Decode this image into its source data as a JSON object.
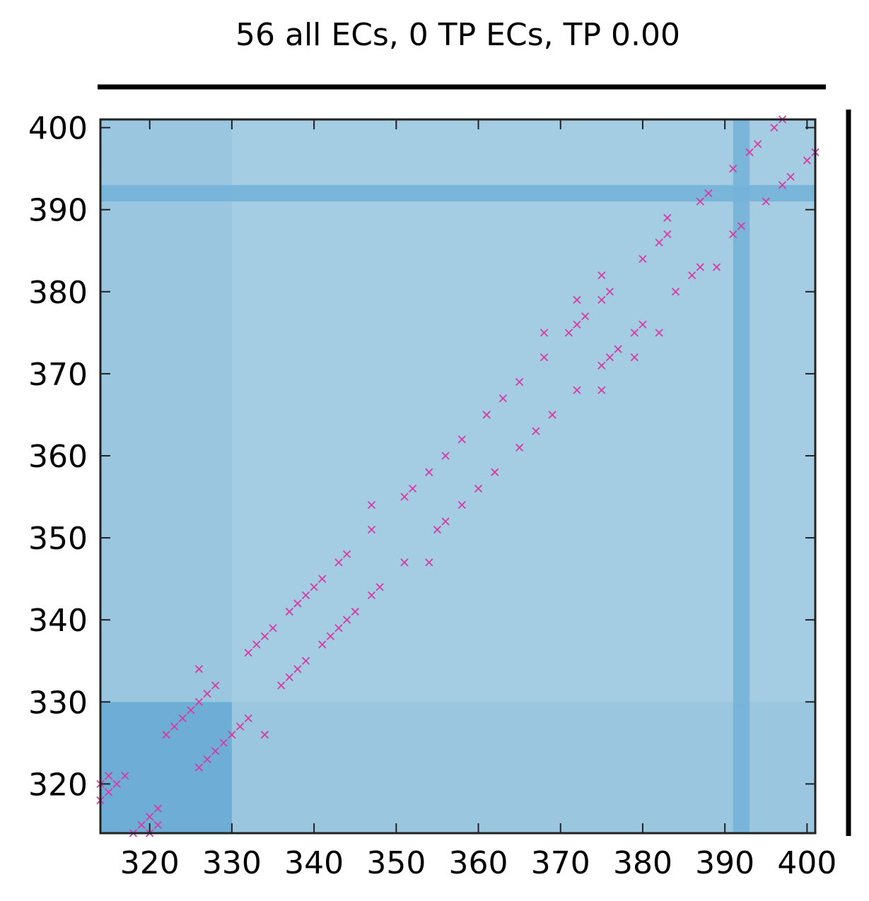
{
  "chart_data": {
    "type": "scatter",
    "title": "56 all ECs, 0 TP ECs, TP 0.00",
    "xlabel": "",
    "ylabel": "",
    "xlim": [
      314,
      401
    ],
    "ylim": [
      314,
      401
    ],
    "xticks": [
      320,
      330,
      340,
      350,
      360,
      370,
      380,
      390,
      400
    ],
    "yticks": [
      320,
      330,
      340,
      350,
      360,
      370,
      380,
      390,
      400
    ],
    "grid": false,
    "marker": "x",
    "colors": {
      "background": "#a4cce2",
      "block_dark": "#6eaed6",
      "block_mid": "#9ac6df",
      "band": "#75b2d9",
      "marker": "#d63ca4",
      "axis": "#222222"
    },
    "background_regions": [
      {
        "name": "segment-block",
        "x": [
          314,
          330
        ],
        "y": [
          314,
          330
        ],
        "shade": "dark"
      },
      {
        "name": "segment-row-band",
        "x": [
          330,
          401
        ],
        "y": [
          314,
          330
        ],
        "shade": "mid"
      },
      {
        "name": "segment-col-band",
        "x": [
          314,
          330
        ],
        "y": [
          330,
          401
        ],
        "shade": "mid"
      },
      {
        "name": "column-band",
        "x": [
          391,
          393
        ],
        "y": [
          314,
          401
        ],
        "shade": "band"
      },
      {
        "name": "row-band",
        "x": [
          314,
          401
        ],
        "y": [
          391,
          393
        ],
        "shade": "band"
      }
    ],
    "series": [
      {
        "points": [
          [
            314,
            318
          ],
          [
            315,
            319
          ],
          [
            315,
            321
          ],
          [
            317,
            321
          ],
          [
            316,
            320
          ],
          [
            314,
            320
          ],
          [
            318,
            314
          ],
          [
            319,
            315
          ],
          [
            320,
            316
          ],
          [
            321,
            317
          ],
          [
            320,
            314
          ],
          [
            321,
            315
          ],
          [
            322,
            326
          ],
          [
            323,
            327
          ],
          [
            324,
            328
          ],
          [
            325,
            329
          ],
          [
            326,
            330
          ],
          [
            327,
            331
          ],
          [
            328,
            332
          ],
          [
            326,
            334
          ],
          [
            326,
            322
          ],
          [
            327,
            323
          ],
          [
            328,
            324
          ],
          [
            329,
            325
          ],
          [
            330,
            326
          ],
          [
            331,
            327
          ],
          [
            332,
            328
          ],
          [
            334,
            326
          ],
          [
            332,
            336
          ],
          [
            333,
            337
          ],
          [
            334,
            338
          ],
          [
            335,
            339
          ],
          [
            337,
            341
          ],
          [
            338,
            342
          ],
          [
            339,
            343
          ],
          [
            340,
            344
          ],
          [
            341,
            345
          ],
          [
            343,
            347
          ],
          [
            344,
            348
          ],
          [
            347,
            351
          ],
          [
            347,
            354
          ],
          [
            351,
            355
          ],
          [
            352,
            356
          ],
          [
            354,
            358
          ],
          [
            356,
            360
          ],
          [
            358,
            362
          ],
          [
            361,
            365
          ],
          [
            363,
            367
          ],
          [
            365,
            369
          ],
          [
            368,
            372
          ],
          [
            368,
            375
          ],
          [
            371,
            375
          ],
          [
            372,
            376
          ],
          [
            372,
            379
          ],
          [
            373,
            377
          ],
          [
            375,
            379
          ],
          [
            375,
            382
          ],
          [
            376,
            380
          ],
          [
            380,
            384
          ],
          [
            382,
            386
          ],
          [
            383,
            387
          ],
          [
            383,
            389
          ],
          [
            387,
            391
          ],
          [
            388,
            392
          ],
          [
            391,
            395
          ],
          [
            393,
            397
          ],
          [
            394,
            398
          ],
          [
            396,
            400
          ],
          [
            397,
            401
          ],
          [
            336,
            332
          ],
          [
            337,
            333
          ],
          [
            338,
            334
          ],
          [
            339,
            335
          ],
          [
            341,
            337
          ],
          [
            342,
            338
          ],
          [
            343,
            339
          ],
          [
            344,
            340
          ],
          [
            345,
            341
          ],
          [
            347,
            343
          ],
          [
            348,
            344
          ],
          [
            351,
            347
          ],
          [
            354,
            347
          ],
          [
            355,
            351
          ],
          [
            356,
            352
          ],
          [
            358,
            354
          ],
          [
            360,
            356
          ],
          [
            362,
            358
          ],
          [
            365,
            361
          ],
          [
            367,
            363
          ],
          [
            369,
            365
          ],
          [
            372,
            368
          ],
          [
            375,
            368
          ],
          [
            375,
            371
          ],
          [
            376,
            372
          ],
          [
            377,
            373
          ],
          [
            379,
            372
          ],
          [
            379,
            375
          ],
          [
            380,
            376
          ],
          [
            382,
            375
          ],
          [
            384,
            380
          ],
          [
            386,
            382
          ],
          [
            387,
            383
          ],
          [
            389,
            383
          ],
          [
            391,
            387
          ],
          [
            392,
            388
          ],
          [
            395,
            391
          ],
          [
            397,
            393
          ],
          [
            398,
            394
          ],
          [
            400,
            396
          ],
          [
            401,
            397
          ]
        ]
      }
    ]
  }
}
